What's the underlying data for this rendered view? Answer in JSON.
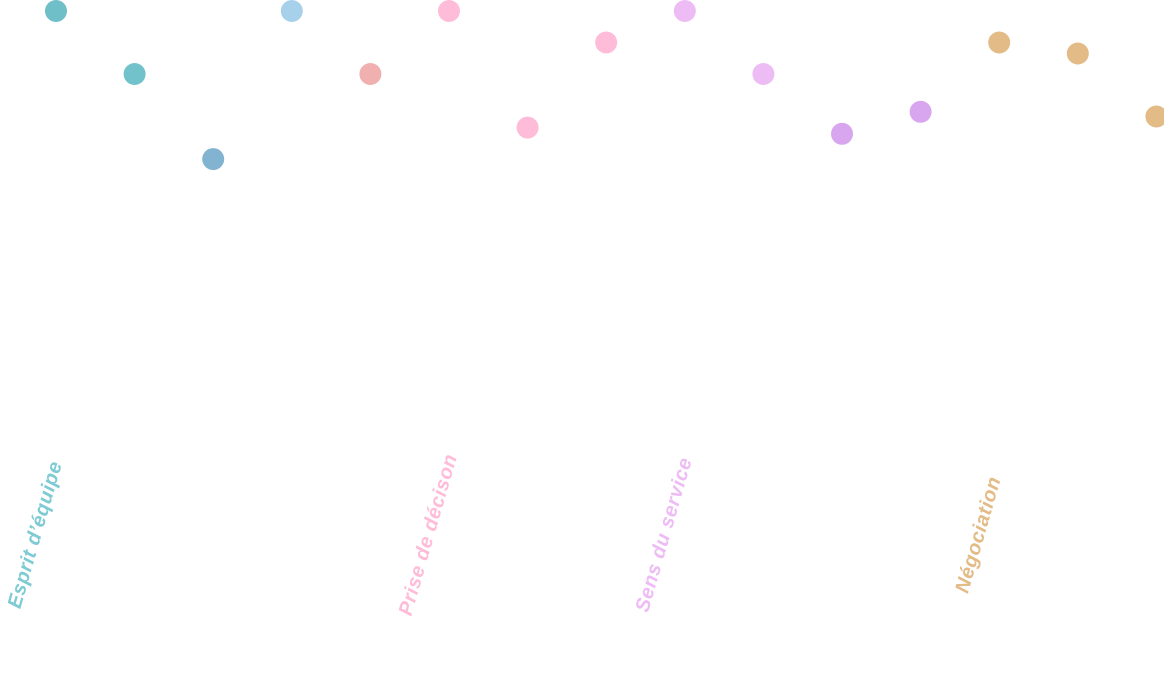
{
  "chart_data": {
    "type": "scatter",
    "y_direction": "down",
    "groups": [
      {
        "label": "Esprit d’équipe",
        "color": "#7ecbd4",
        "points": [
          {
            "value": 0.0,
            "color": "#6ebfc8"
          },
          {
            "value": 2.0,
            "color": "#72c2cc"
          },
          {
            "value": 4.7,
            "color": "#82b3d1"
          }
        ]
      },
      {
        "label": "",
        "color": "#a7d1ea",
        "points": [
          {
            "value": 0.0,
            "color": "#a7d1ea"
          },
          {
            "value": 2.0,
            "color": "#f0b0b0"
          }
        ]
      },
      {
        "label": "Prise de décison",
        "color": "#ffbcd9",
        "points": [
          {
            "value": 0.0,
            "color": "#ffbcd9"
          },
          {
            "value": 3.7,
            "color": "#ffbcd9"
          },
          {
            "value": 1.0,
            "color": "#ffbcd9"
          }
        ]
      },
      {
        "label": "Sens du service",
        "color": "#eebcf5",
        "points": [
          {
            "value": 0.0,
            "color": "#eebcf5"
          },
          {
            "value": 2.0,
            "color": "#eebcf5"
          },
          {
            "value": 3.9,
            "color": "#d7a6ef"
          },
          {
            "value": 3.2,
            "color": "#d7a6ef"
          }
        ]
      },
      {
        "label": "Négociation",
        "color": "#e2bb86",
        "points": [
          {
            "value": 1.0,
            "color": "#e2bb86"
          },
          {
            "value": 1.35,
            "color": "#e2bb86"
          },
          {
            "value": 3.35,
            "color": "#e2bb86"
          }
        ]
      }
    ]
  }
}
